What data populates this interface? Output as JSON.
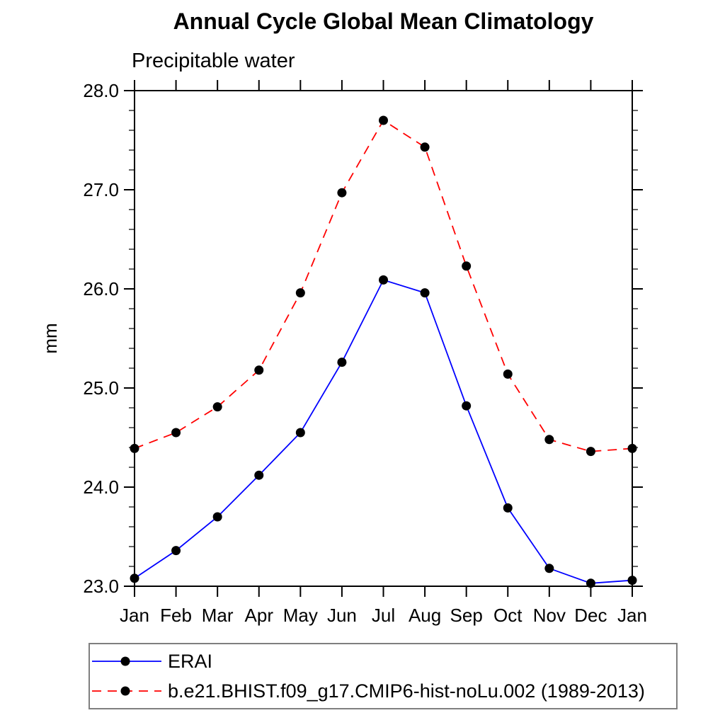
{
  "chart_data": {
    "type": "line",
    "title": "Annual Cycle Global Mean Climatology",
    "subtitle": "Precipitable water",
    "ylabel": "mm",
    "xlabel": "",
    "categories": [
      "Jan",
      "Feb",
      "Mar",
      "Apr",
      "May",
      "Jun",
      "Jul",
      "Aug",
      "Sep",
      "Oct",
      "Nov",
      "Dec",
      "Jan"
    ],
    "ylim": [
      23.0,
      28.0
    ],
    "ytick_labels": [
      "23.0",
      "24.0",
      "25.0",
      "26.0",
      "27.0",
      "28.0"
    ],
    "ytick_major": [
      23.0,
      24.0,
      25.0,
      26.0,
      27.0,
      28.0
    ],
    "ytick_minor_step": 0.2,
    "grid": false,
    "legend_position": "bottom-left-box",
    "marker": "filled-circle",
    "marker_color": "#000000",
    "series": [
      {
        "name": "ERAI",
        "color": "#0000ff",
        "line_style": "solid",
        "values": [
          23.08,
          23.36,
          23.7,
          24.12,
          24.55,
          25.26,
          26.09,
          25.96,
          24.82,
          23.79,
          23.18,
          23.03,
          23.06
        ]
      },
      {
        "name": "b.e21.BHIST.f09_g17.CMIP6-hist-noLu.002 (1989-2013)",
        "color": "#ff0000",
        "line_style": "dashed",
        "values": [
          24.39,
          24.55,
          24.81,
          25.18,
          25.96,
          26.97,
          27.7,
          27.43,
          26.23,
          25.14,
          24.48,
          24.36,
          24.39
        ]
      }
    ]
  }
}
